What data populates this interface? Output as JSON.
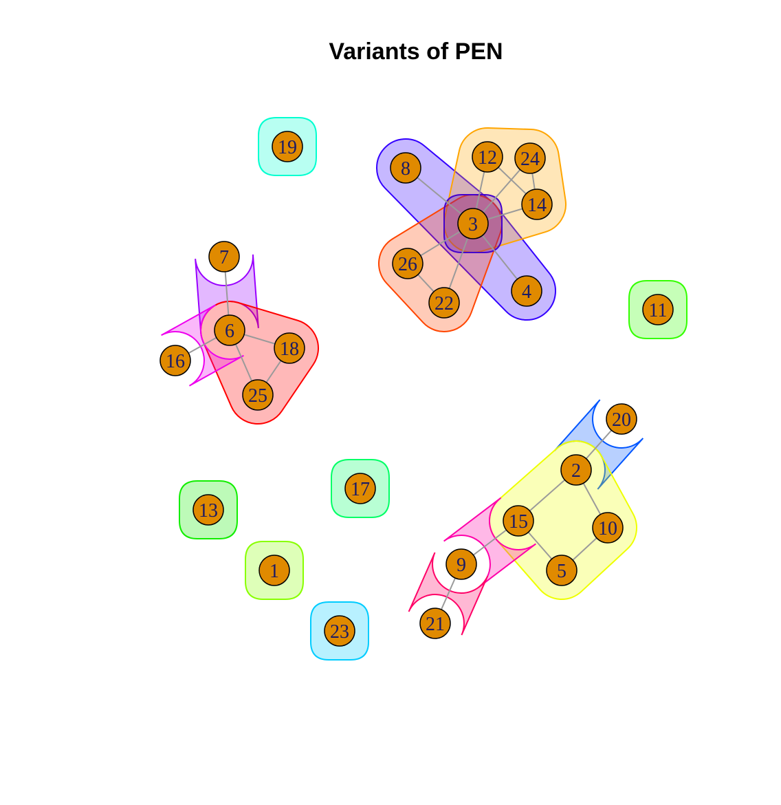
{
  "title": "Variants of PEN",
  "colors": {
    "node_fill": "#E08A00",
    "node_stroke": "#000000",
    "edge": "#9a9a9a",
    "label": "#1a1a66"
  },
  "nodes": [
    "1",
    "2",
    "3",
    "4",
    "5",
    "6",
    "7",
    "8",
    "9",
    "10",
    "11",
    "12",
    "13",
    "14",
    "15",
    "16",
    "17",
    "18",
    "19",
    "20",
    "21",
    "22",
    "23",
    "24",
    "25",
    "26"
  ],
  "edges": [
    [
      "8",
      "3"
    ],
    [
      "12",
      "3"
    ],
    [
      "24",
      "3"
    ],
    [
      "14",
      "3"
    ],
    [
      "12",
      "14"
    ],
    [
      "24",
      "14"
    ],
    [
      "3",
      "26"
    ],
    [
      "3",
      "22"
    ],
    [
      "3",
      "4"
    ],
    [
      "26",
      "22"
    ],
    [
      "7",
      "6"
    ],
    [
      "6",
      "16"
    ],
    [
      "6",
      "18"
    ],
    [
      "6",
      "25"
    ],
    [
      "18",
      "25"
    ],
    [
      "20",
      "2"
    ],
    [
      "2",
      "15"
    ],
    [
      "2",
      "10"
    ],
    [
      "10",
      "5"
    ],
    [
      "15",
      "5"
    ],
    [
      "15",
      "9"
    ],
    [
      "9",
      "21"
    ]
  ],
  "groups": [
    {
      "members": [
        "19"
      ],
      "color": "#00FFD0"
    },
    {
      "members": [
        "8",
        "3",
        "4"
      ],
      "color": "#3300FF"
    },
    {
      "members": [
        "12",
        "24",
        "14",
        "3"
      ],
      "color": "#FFA500"
    },
    {
      "members": [
        "3",
        "26",
        "22"
      ],
      "color": "#FF4500"
    },
    {
      "members": [
        "3"
      ],
      "color": "#4400CC"
    },
    {
      "members": [
        "7",
        "6"
      ],
      "color": "#9900FF"
    },
    {
      "members": [
        "6",
        "18",
        "25"
      ],
      "color": "#FF0000"
    },
    {
      "members": [
        "16",
        "6"
      ],
      "color": "#EE00EE"
    },
    {
      "members": [
        "11"
      ],
      "color": "#33FF00"
    },
    {
      "members": [
        "20",
        "2"
      ],
      "color": "#0055FF"
    },
    {
      "members": [
        "2",
        "15",
        "10",
        "5"
      ],
      "color": "#EEFF00"
    },
    {
      "members": [
        "15",
        "9"
      ],
      "color": "#FF00AA"
    },
    {
      "members": [
        "9",
        "21"
      ],
      "color": "#FF0066"
    },
    {
      "members": [
        "17"
      ],
      "color": "#00FF66"
    },
    {
      "members": [
        "13"
      ],
      "color": "#11EE00"
    },
    {
      "members": [
        "1"
      ],
      "color": "#88FF00"
    },
    {
      "members": [
        "23"
      ],
      "color": "#00CCFF"
    }
  ]
}
